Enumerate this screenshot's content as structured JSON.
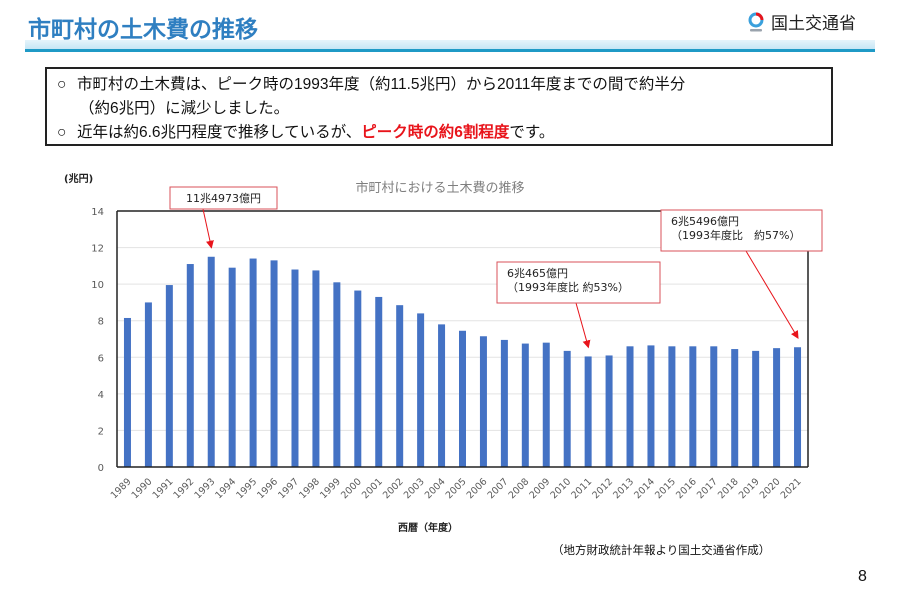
{
  "header": {
    "title": "市町村の土木費の推移",
    "logo_text": "国土交通省",
    "logo_icon": "mlit-logo-icon"
  },
  "summary": {
    "bullet": "○",
    "line1": "市町村の土木費は、ピーク時の1993年度（約11.5兆円）から2011年度までの間で約半分",
    "line1_cont": "（約6兆円）に減少しました。",
    "line2_pre": "近年は約6.6兆円程度で推移しているが、",
    "line2_highlight": "ピーク時の約6割程度",
    "line2_post": "です。"
  },
  "colors": {
    "title": "#2f7fc1",
    "bar": "#4472c4",
    "callout_border": "#d9525a",
    "arrow": "#e8141b",
    "highlight": "#e8141b"
  },
  "chart_data": {
    "type": "bar",
    "title": "市町村における土木費の推移",
    "ylabel": "(兆円)",
    "xlabel": "西暦（年度）",
    "ylim": [
      0,
      14
    ],
    "yticks": [
      0,
      2,
      4,
      6,
      8,
      10,
      12,
      14
    ],
    "grid": true,
    "categories": [
      "1989",
      "1990",
      "1991",
      "1992",
      "1993",
      "1994",
      "1995",
      "1996",
      "1997",
      "1998",
      "1999",
      "2000",
      "2001",
      "2002",
      "2003",
      "2004",
      "2005",
      "2006",
      "2007",
      "2008",
      "2009",
      "2010",
      "2011",
      "2012",
      "2013",
      "2014",
      "2015",
      "2016",
      "2017",
      "2018",
      "2019",
      "2020",
      "2021"
    ],
    "values": [
      8.15,
      9.0,
      9.95,
      11.1,
      11.4973,
      10.9,
      11.4,
      11.3,
      10.8,
      10.75,
      10.1,
      9.65,
      9.3,
      8.85,
      8.4,
      7.8,
      7.45,
      7.15,
      6.95,
      6.75,
      6.8,
      6.35,
      6.0465,
      6.1,
      6.6,
      6.65,
      6.6,
      6.6,
      6.6,
      6.45,
      6.35,
      6.5,
      6.5496
    ],
    "annotations": [
      {
        "target": "1993",
        "lines": [
          "11兆4973億円"
        ]
      },
      {
        "target": "2011",
        "lines": [
          "6兆465億円",
          "（1993年度比 約53%）"
        ]
      },
      {
        "target": "2021",
        "lines": [
          "6兆5496億円",
          "（1993年度比　約57%）"
        ]
      }
    ]
  },
  "footer": {
    "source": "（地方財政統計年報より国土交通省作成）",
    "page_number": "8"
  }
}
